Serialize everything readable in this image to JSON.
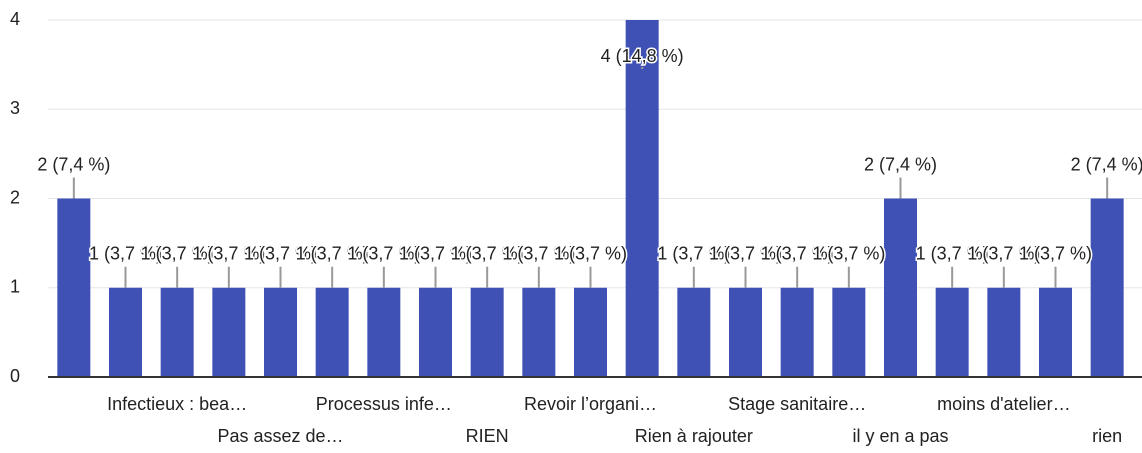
{
  "chart_data": {
    "type": "bar",
    "categories": [
      null,
      null,
      "Infectieux : bea…",
      null,
      "Pas assez de…",
      null,
      "Processus infe…",
      null,
      "RIEN",
      null,
      "Revoir l’organi…",
      null,
      "Rien à rajouter",
      null,
      "Stage sanitaire…",
      null,
      "il y en a pas",
      null,
      "moins d'atelier…",
      null,
      "rien"
    ],
    "values": [
      2,
      1,
      1,
      1,
      1,
      1,
      1,
      1,
      1,
      1,
      1,
      4,
      1,
      1,
      1,
      1,
      2,
      1,
      1,
      1,
      2
    ],
    "value_labels": [
      "2 (7,4 %)",
      "1 (3,7 %)",
      "1 (3,7 %)",
      "1 (3,7 %)",
      "1 (3,7 %)",
      "1 (3,7 %)",
      "1 (3,7 %)",
      "1 (3,7 %)",
      "1 (3,7 %)",
      "1 (3,7 %)",
      "1 (3,7 %)",
      "4 (14,8 %)",
      "1 (3,7 %)",
      "1 (3,7 %)",
      "1 (3,7 %)",
      "1 (3,7 %)",
      "2 (7,4 %)",
      "1 (3,7 %)",
      "1 (3,7 %)",
      "1 (3,7 %)",
      "2 (7,4 %)"
    ],
    "color": "#3f51b5",
    "ylim": [
      0,
      4
    ],
    "yticks": [
      0,
      1,
      2,
      3,
      4
    ],
    "grid": true
  }
}
